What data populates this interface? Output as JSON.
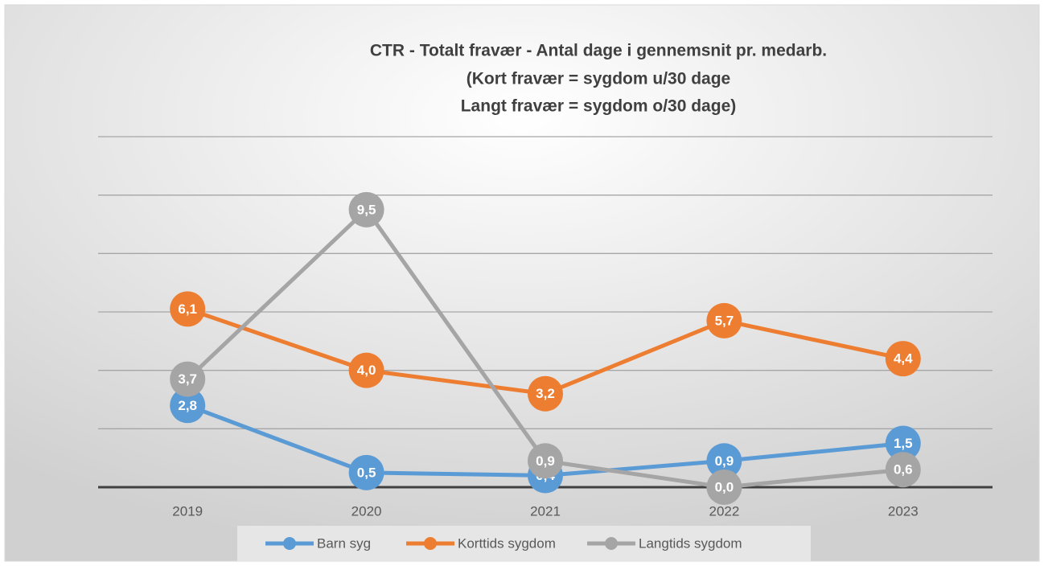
{
  "chart_data": {
    "type": "line",
    "title": [
      "CTR - Totalt fravær - Antal dage i gennemsnit pr. medarb.",
      "(Kort fravær = sygdom u/30 dage",
      "Langt fravær = sygdom o/30 dage)"
    ],
    "categories": [
      "2019",
      "2020",
      "2021",
      "2022",
      "2023"
    ],
    "series": [
      {
        "name": "Barn syg",
        "color": "#5b9bd5",
        "values": [
          2.8,
          0.5,
          0.4,
          0.9,
          1.5
        ],
        "value_labels": [
          "2,8",
          "0,5",
          "0,4",
          "0,9",
          "1,5"
        ]
      },
      {
        "name": "Korttids sygdom",
        "color": "#ed7d31",
        "values": [
          6.1,
          4.0,
          3.2,
          5.7,
          4.4
        ],
        "value_labels": [
          "6,1",
          "4,0",
          "3,2",
          "5,7",
          "4,4"
        ]
      },
      {
        "name": "Langtids sygdom",
        "color": "#a5a5a5",
        "values": [
          3.7,
          9.5,
          0.9,
          0.0,
          0.6
        ],
        "value_labels": [
          "3,7",
          "9,5",
          "0,9",
          "0,0",
          "0,6"
        ]
      }
    ],
    "ylim": [
      0,
      12
    ],
    "yticks": [
      0,
      2,
      4,
      6,
      8,
      10,
      12
    ],
    "grid": true,
    "legend": "bottom"
  }
}
